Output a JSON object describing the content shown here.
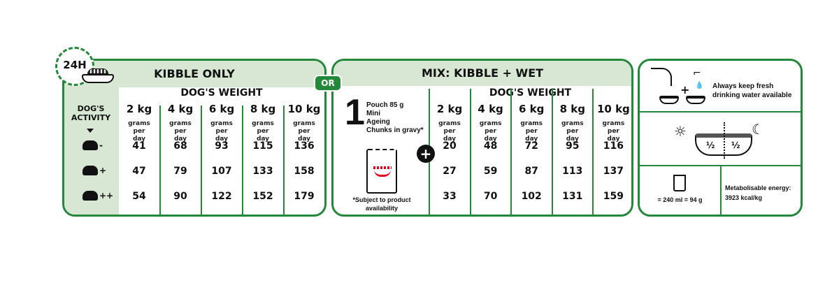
{
  "kibble_only": {
    "title": "KIBBLE ONLY",
    "badge": "24H",
    "weight_header": "DOG'S WEIGHT",
    "activity_label": "DOG'S ACTIVITY",
    "activity_levels": [
      "-",
      "+",
      "++"
    ],
    "weights": [
      "2 kg",
      "4 kg",
      "6 kg",
      "8 kg",
      "10 kg"
    ],
    "unit": "grams per day",
    "rows": [
      [
        "41",
        "68",
        "93",
        "115",
        "136"
      ],
      [
        "47",
        "79",
        "107",
        "133",
        "158"
      ],
      [
        "54",
        "90",
        "122",
        "152",
        "179"
      ]
    ]
  },
  "or_label": "OR",
  "mix": {
    "title": "MIX: KIBBLE + WET",
    "pouch_count": "1",
    "pouch_lines": [
      "Pouch 85 g",
      "Mini",
      "Ageing",
      "Chunks in gravy*"
    ],
    "note": "*Subject to product availability",
    "weight_header": "DOG'S WEIGHT",
    "weights": [
      "2 kg",
      "4 kg",
      "6 kg",
      "8 kg",
      "10 kg"
    ],
    "unit": "grams per day",
    "rows": [
      [
        "20",
        "48",
        "72",
        "95",
        "116"
      ],
      [
        "27",
        "59",
        "87",
        "113",
        "137"
      ],
      [
        "33",
        "70",
        "102",
        "131",
        "159"
      ]
    ]
  },
  "info": {
    "water": "Always keep fresh drinking water available",
    "half_left": "½",
    "half_right": "½",
    "cup": "= 240 ml = 94 g",
    "energy_label": "Metabolisable energy:",
    "energy_value": "3923 kcal/kg"
  },
  "colors": {
    "green": "#23883a",
    "header_bg": "#d7e7d3",
    "logo_red": "#e2001a"
  }
}
